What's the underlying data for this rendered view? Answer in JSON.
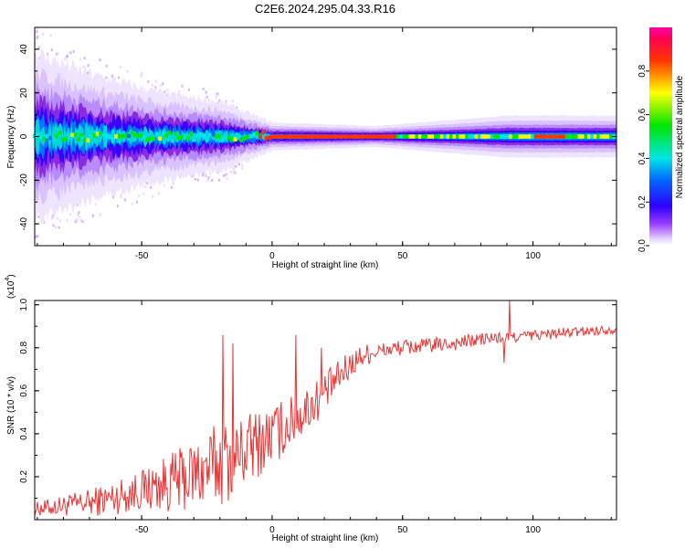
{
  "figure_title": "C2E6.2024.295.04.33.R16",
  "chart_data": [
    {
      "type": "heatmap",
      "title": "C2E6.2024.295.04.33.R16",
      "xlabel": "Height of straight line (km)",
      "ylabel": "Frequency (Hz)",
      "xlim": [
        -91,
        132
      ],
      "ylim": [
        -50,
        50
      ],
      "xticks": [
        -50,
        0,
        50,
        100
      ],
      "yticks": [
        -40,
        -20,
        0,
        20,
        40
      ],
      "xtick_labels": [
        "-50",
        "0",
        "50",
        "100"
      ],
      "ytick_labels": [
        "-40",
        "-20",
        "0",
        "20",
        "40"
      ],
      "colorbar": {
        "label": "Normalized spectral amplitude",
        "range": [
          0.0,
          1.0
        ],
        "ticks": [
          0.0,
          0.2,
          0.4,
          0.6,
          0.8
        ],
        "tick_labels": [
          "0.0",
          "0.2",
          "0.4",
          "0.6",
          "0.8"
        ],
        "colormap": "rainbow (white-violet-blue-cyan-green-yellow-red-magenta)"
      },
      "band": {
        "description": "Energy concentrated near 0 Hz; broad and noisy at low heights, narrowing into a strong red line from about 5 km to 45 km, then widening slightly near 85-130 km",
        "center_frequency": 0,
        "half_width_profile": [
          {
            "x": -91,
            "half_width": 12
          },
          {
            "x": -70,
            "half_width": 9
          },
          {
            "x": -40,
            "half_width": 6
          },
          {
            "x": -20,
            "half_width": 5
          },
          {
            "x": 0,
            "half_width": 2
          },
          {
            "x": 40,
            "half_width": 1.5
          },
          {
            "x": 90,
            "half_width": 3
          },
          {
            "x": 132,
            "half_width": 3
          }
        ]
      }
    },
    {
      "type": "line",
      "xlabel": "Height of straight line (km)",
      "ylabel": "SNR (10 * v/v)",
      "exponent_label": "(x10",
      "exponent_power": "4",
      "exponent_close": ")",
      "xlim": [
        -91,
        132
      ],
      "ylim": [
        0,
        1.02
      ],
      "xticks": [
        -50,
        0,
        50,
        100
      ],
      "yticks": [
        0.2,
        0.4,
        0.6,
        0.8,
        1.0
      ],
      "xtick_labels": [
        "-50",
        "0",
        "50",
        "100"
      ],
      "ytick_labels": [
        "0.2",
        "0.4",
        "0.6",
        "0.8",
        "1.0"
      ],
      "series": [
        {
          "name": "SNR",
          "color": "#ee3333",
          "trend": {
            "x": [
              -91,
              -80,
              -70,
              -60,
              -50,
              -40,
              -30,
              -20,
              -15,
              -10,
              -5,
              0,
              5,
              10,
              15,
              20,
              25,
              30,
              35,
              40,
              50,
              60,
              70,
              80,
              90,
              100,
              110,
              120,
              132
            ],
            "y": [
              0.04,
              0.05,
              0.06,
              0.08,
              0.11,
              0.13,
              0.16,
              0.2,
              0.23,
              0.27,
              0.31,
              0.35,
              0.39,
              0.44,
              0.5,
              0.56,
              0.63,
              0.7,
              0.75,
              0.77,
              0.79,
              0.8,
              0.81,
              0.83,
              0.84,
              0.85,
              0.86,
              0.87,
              0.88
            ]
          },
          "noise_amplitude": {
            "x": [
              -91,
              -50,
              -20,
              -5,
              20,
              40,
              132
            ],
            "a": [
              0.04,
              0.12,
              0.25,
              0.2,
              0.12,
              0.05,
              0.025
            ]
          },
          "spikes": [
            {
              "x": -19,
              "y": 0.86
            },
            {
              "x": -15,
              "y": 0.82
            },
            {
              "x": 9,
              "y": 0.86
            },
            {
              "x": 19,
              "y": 0.8
            },
            {
              "x": 91,
              "y": 1.02
            },
            {
              "x": 89,
              "y": 0.73
            }
          ]
        }
      ]
    }
  ],
  "colors": {
    "line": "#ee3333",
    "axis": "#000000",
    "background": "#ffffff"
  }
}
